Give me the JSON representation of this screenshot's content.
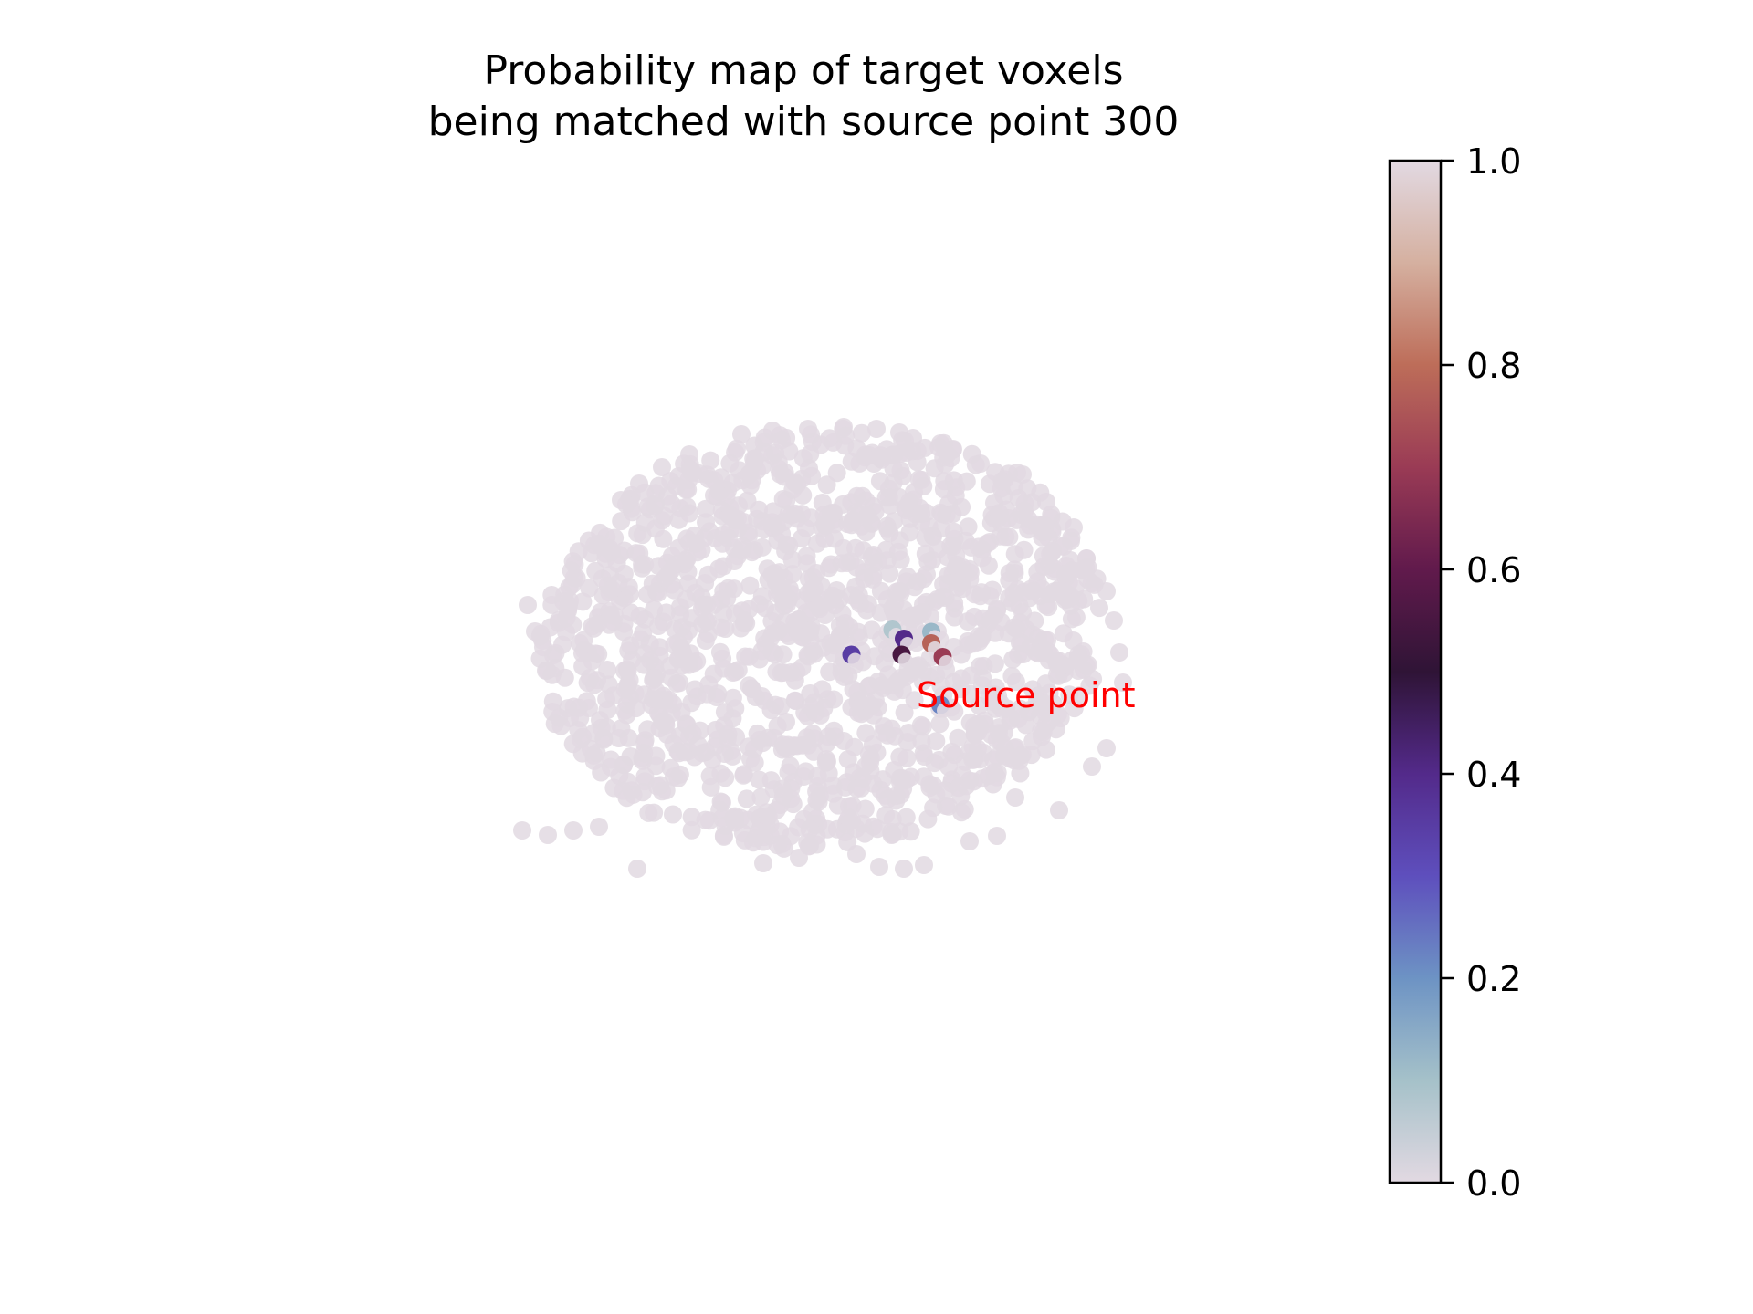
{
  "chart_data": {
    "type": "scatter",
    "title": [
      "Probability map of target voxels",
      "being matched with source point 300"
    ],
    "annotation": {
      "text": "Source point",
      "color": "#ff0000"
    },
    "axes_visible": false,
    "grid": false,
    "background_color_value": 1.0,
    "highlighted_points": [
      {
        "x": 0.03,
        "y": 0.08,
        "value": 0.08
      },
      {
        "x": 0.2,
        "y": 0.07,
        "value": 0.12
      },
      {
        "x": 0.08,
        "y": 0.04,
        "value": 0.4
      },
      {
        "x": 0.2,
        "y": 0.02,
        "value": 0.78
      },
      {
        "x": 0.07,
        "y": -0.03,
        "value": 0.55
      },
      {
        "x": 0.25,
        "y": -0.04,
        "value": 0.7
      },
      {
        "x": -0.15,
        "y": -0.03,
        "value": 0.35
      },
      {
        "x": 0.24,
        "y": -0.25,
        "value": 0.22
      }
    ],
    "colorbar": {
      "colormap": "twilight",
      "range": [
        0.0,
        1.0
      ],
      "ticks": [
        "0.0",
        "0.2",
        "0.4",
        "0.6",
        "0.8",
        "1.0"
      ]
    }
  }
}
